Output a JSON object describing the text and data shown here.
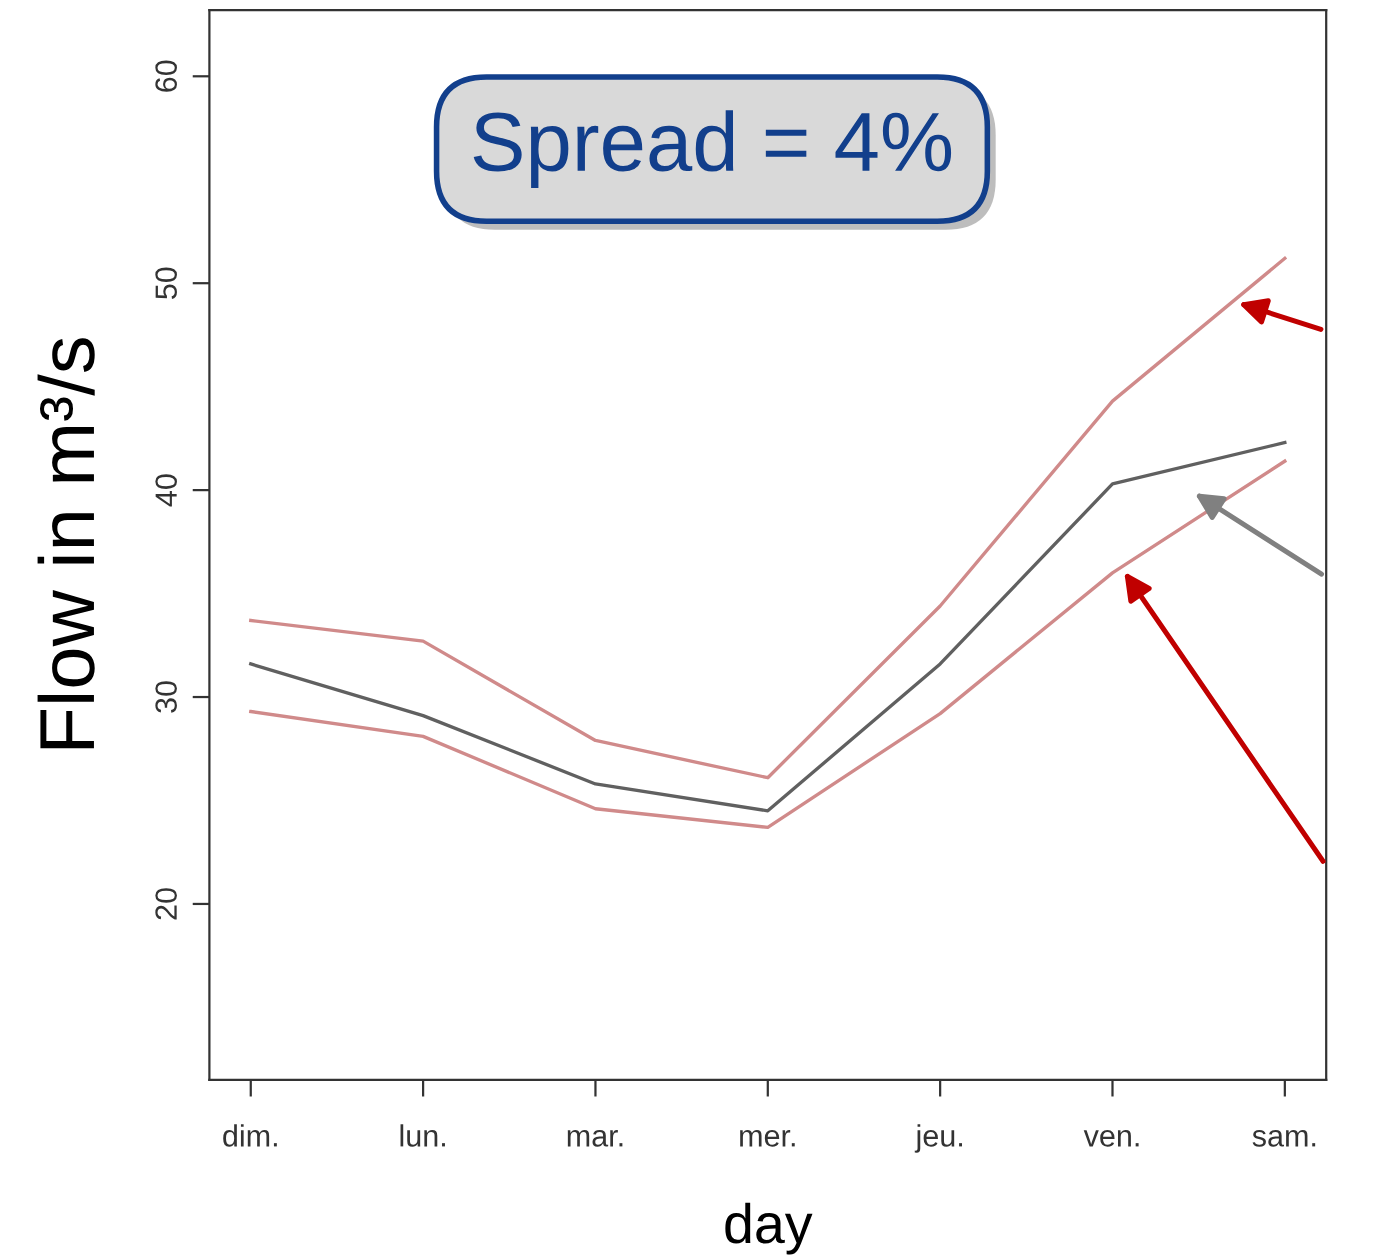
{
  "chart_data": {
    "type": "line",
    "xlabel": "day",
    "ylabel": "Flow in m³/s",
    "annotations": [
      "Spread = 4%"
    ],
    "categories": [
      "dim.",
      "lun.",
      "mar.",
      "mer.",
      "jeu.",
      "ven.",
      "sam."
    ],
    "series": [
      {
        "color": "#d08a8a",
        "values": [
          33.7,
          32.7,
          27.9,
          26.1,
          34.4,
          44.3,
          51.2
        ]
      },
      {
        "color": "#606060",
        "values": [
          31.6,
          29.1,
          25.8,
          24.5,
          31.6,
          40.3,
          42.3
        ]
      },
      {
        "color": "#d08a8a",
        "values": [
          29.3,
          28.1,
          24.6,
          23.7,
          29.2,
          36.0,
          41.4
        ]
      }
    ],
    "ylim": [
      11.5,
      63.2
    ],
    "yticks": [
      20,
      30,
      40,
      50,
      60
    ],
    "grid": false,
    "marker": "none",
    "line_style": "solid"
  }
}
